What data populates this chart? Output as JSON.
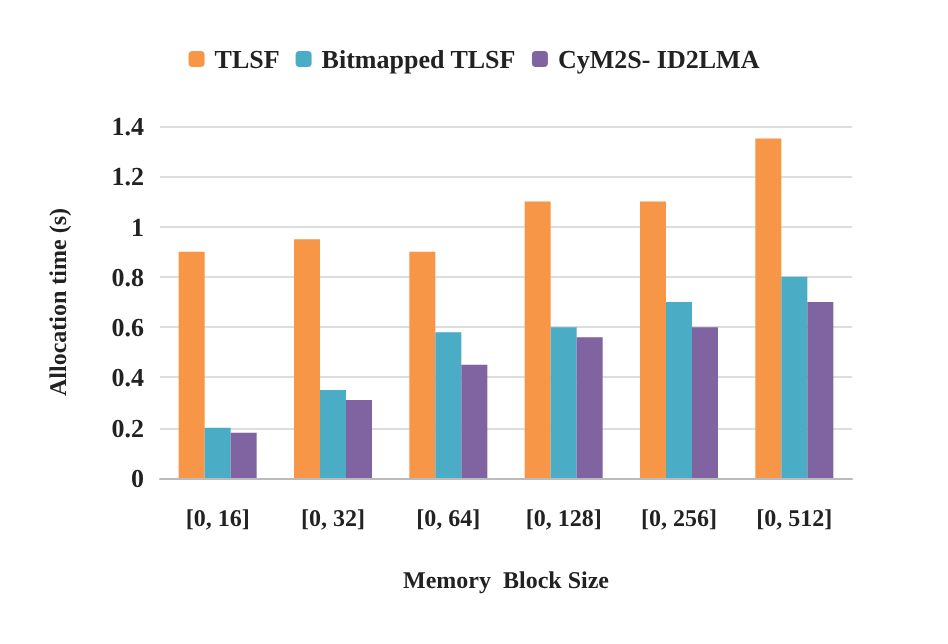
{
  "chart_data": {
    "type": "bar",
    "xlabel": "Memory  Block Size",
    "ylabel": "Allocation time (s)",
    "categories": [
      "[0, 16]",
      "[0, 32]",
      "[0, 64]",
      "[0, 128]",
      "[0, 256]",
      "[0, 512]"
    ],
    "series": [
      {
        "name": "TLSF",
        "color": "#f79646",
        "values": [
          0.9,
          0.95,
          0.9,
          1.1,
          1.1,
          1.35
        ]
      },
      {
        "name": "Bitmapped TLSF",
        "color": "#4bacc6",
        "values": [
          0.2,
          0.35,
          0.58,
          0.6,
          0.7,
          0.8
        ]
      },
      {
        "name": "CyM2S- ID2LMA",
        "color": "#8064a2",
        "values": [
          0.18,
          0.31,
          0.45,
          0.56,
          0.6,
          0.7
        ]
      }
    ],
    "ylim": [
      0,
      1.4
    ],
    "yticks": [
      0,
      0.2,
      0.4,
      0.6,
      0.8,
      1,
      1.2,
      1.4
    ],
    "grid": "y",
    "legend": "top"
  }
}
